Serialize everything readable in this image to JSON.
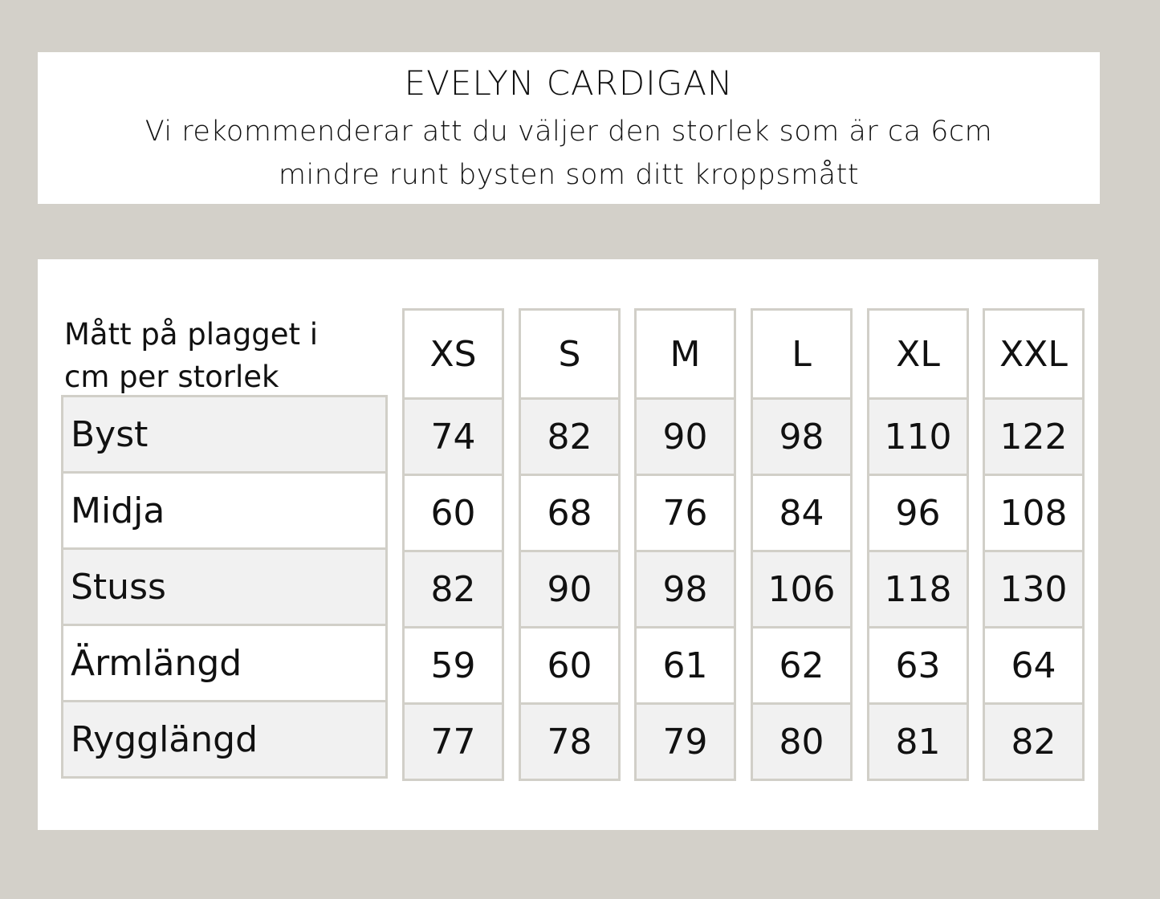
{
  "header": {
    "title": "EVELYN CARDIGAN",
    "subtitle_line1": "Vi rekommenderar att du väljer den storlek som är ca 6cm",
    "subtitle_line2": "mindre runt bysten som ditt kroppsmått"
  },
  "table": {
    "corner_line1": "Mått på plagget i",
    "corner_line2": "cm per storlek",
    "sizes": [
      "XS",
      "S",
      "M",
      "L",
      "XL",
      "XXL"
    ],
    "rows": [
      {
        "label": "Byst",
        "values": [
          "74",
          "82",
          "90",
          "98",
          "110",
          "122"
        ]
      },
      {
        "label": "Midja",
        "values": [
          "60",
          "68",
          "76",
          "84",
          "96",
          "108"
        ]
      },
      {
        "label": "Stuss",
        "values": [
          "82",
          "90",
          "98",
          "106",
          "118",
          "130"
        ]
      },
      {
        "label": "Ärmlängd",
        "values": [
          "59",
          "60",
          "61",
          "62",
          "63",
          "64"
        ]
      },
      {
        "label": "Rygglängd",
        "values": [
          "77",
          "78",
          "79",
          "80",
          "81",
          "82"
        ]
      }
    ]
  },
  "colors": {
    "background": "#d3d0c9",
    "border": "#d1cfc8",
    "shaded_row": "#f1f1f1"
  }
}
